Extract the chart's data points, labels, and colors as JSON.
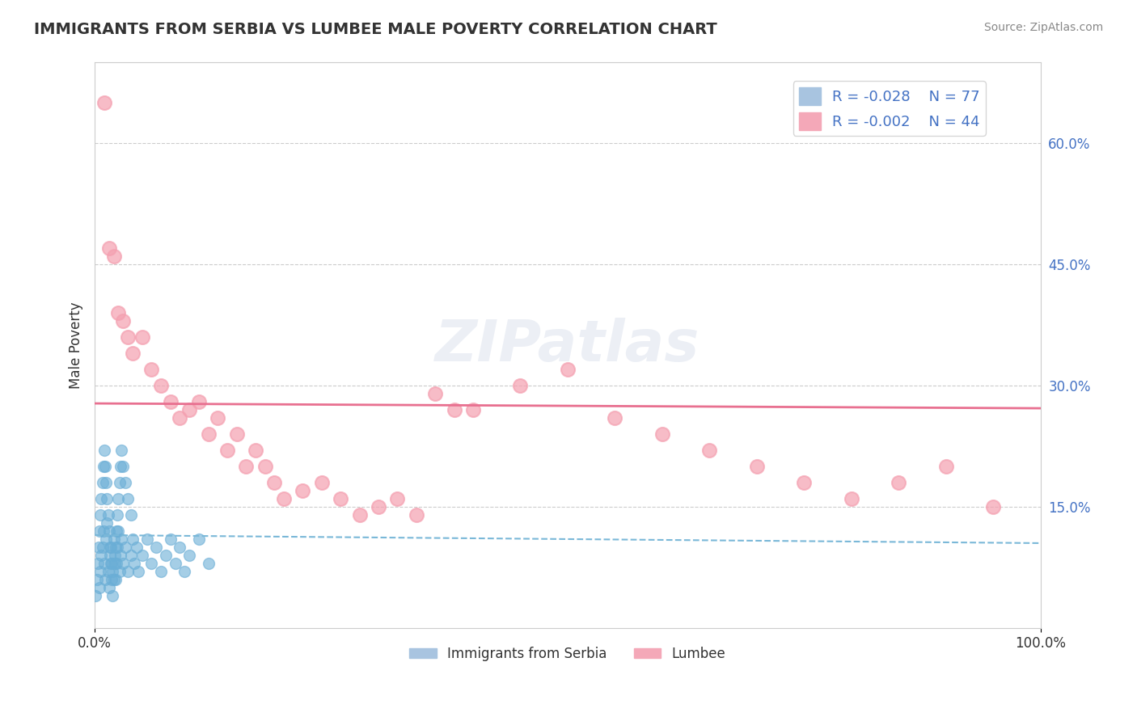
{
  "title": "IMMIGRANTS FROM SERBIA VS LUMBEE MALE POVERTY CORRELATION CHART",
  "source": "Source: ZipAtlas.com",
  "xlabel": "",
  "ylabel": "Male Poverty",
  "legend_entries": [
    {
      "label": "Immigrants from Serbia",
      "color": "#a8c4e0",
      "R": -0.028,
      "N": 77
    },
    {
      "label": "Lumbee",
      "color": "#f4a8b8",
      "R": -0.002,
      "N": 44
    }
  ],
  "xlim": [
    0,
    1.0
  ],
  "ylim": [
    0,
    0.7
  ],
  "xtick_labels": [
    "0.0%",
    "100.0%"
  ],
  "ytick_labels_right": [
    "60.0%",
    "45.0%",
    "30.0%",
    "15.0%"
  ],
  "ytick_positions_right": [
    0.6,
    0.45,
    0.3,
    0.15
  ],
  "background_color": "#ffffff",
  "watermark": "ZIPatlas",
  "serbia_scatter_color": "#6aaed6",
  "lumbee_scatter_color": "#f4a0b0",
  "serbia_line_color": "#7ab8d8",
  "lumbee_line_color": "#e87090",
  "serbia_points_x": [
    0.005,
    0.006,
    0.007,
    0.008,
    0.009,
    0.01,
    0.011,
    0.012,
    0.013,
    0.014,
    0.015,
    0.016,
    0.017,
    0.018,
    0.019,
    0.02,
    0.021,
    0.022,
    0.023,
    0.024,
    0.025,
    0.026,
    0.027,
    0.028,
    0.03,
    0.032,
    0.035,
    0.038,
    0.04,
    0.042,
    0.044,
    0.046,
    0.05,
    0.055,
    0.06,
    0.065,
    0.07,
    0.075,
    0.08,
    0.085,
    0.09,
    0.095,
    0.1,
    0.11,
    0.12,
    0.001,
    0.002,
    0.003,
    0.004,
    0.005,
    0.006,
    0.007,
    0.008,
    0.009,
    0.01,
    0.011,
    0.012,
    0.013,
    0.014,
    0.015,
    0.016,
    0.017,
    0.018,
    0.019,
    0.02,
    0.021,
    0.022,
    0.023,
    0.024,
    0.025,
    0.026,
    0.027,
    0.028,
    0.03,
    0.032,
    0.035,
    0.038
  ],
  "serbia_points_y": [
    0.05,
    0.07,
    0.09,
    0.1,
    0.12,
    0.08,
    0.06,
    0.11,
    0.13,
    0.07,
    0.05,
    0.09,
    0.1,
    0.08,
    0.07,
    0.11,
    0.09,
    0.06,
    0.08,
    0.1,
    0.12,
    0.07,
    0.09,
    0.11,
    0.08,
    0.1,
    0.07,
    0.09,
    0.11,
    0.08,
    0.1,
    0.07,
    0.09,
    0.11,
    0.08,
    0.1,
    0.07,
    0.09,
    0.11,
    0.08,
    0.1,
    0.07,
    0.09,
    0.11,
    0.08,
    0.04,
    0.06,
    0.08,
    0.1,
    0.12,
    0.14,
    0.16,
    0.18,
    0.2,
    0.22,
    0.2,
    0.18,
    0.16,
    0.14,
    0.12,
    0.1,
    0.08,
    0.06,
    0.04,
    0.06,
    0.08,
    0.1,
    0.12,
    0.14,
    0.16,
    0.18,
    0.2,
    0.22,
    0.2,
    0.18,
    0.16,
    0.14
  ],
  "lumbee_points_x": [
    0.01,
    0.015,
    0.02,
    0.025,
    0.03,
    0.035,
    0.04,
    0.05,
    0.06,
    0.07,
    0.08,
    0.09,
    0.1,
    0.11,
    0.12,
    0.13,
    0.14,
    0.15,
    0.16,
    0.17,
    0.18,
    0.19,
    0.2,
    0.22,
    0.24,
    0.26,
    0.28,
    0.3,
    0.32,
    0.34,
    0.36,
    0.38,
    0.4,
    0.45,
    0.5,
    0.55,
    0.6,
    0.65,
    0.7,
    0.75,
    0.8,
    0.85,
    0.9,
    0.95
  ],
  "lumbee_points_y": [
    0.65,
    0.47,
    0.46,
    0.39,
    0.38,
    0.36,
    0.34,
    0.36,
    0.32,
    0.3,
    0.28,
    0.26,
    0.27,
    0.28,
    0.24,
    0.26,
    0.22,
    0.24,
    0.2,
    0.22,
    0.2,
    0.18,
    0.16,
    0.17,
    0.18,
    0.16,
    0.14,
    0.15,
    0.16,
    0.14,
    0.29,
    0.27,
    0.27,
    0.3,
    0.32,
    0.26,
    0.24,
    0.22,
    0.2,
    0.18,
    0.16,
    0.18,
    0.2,
    0.15
  ]
}
